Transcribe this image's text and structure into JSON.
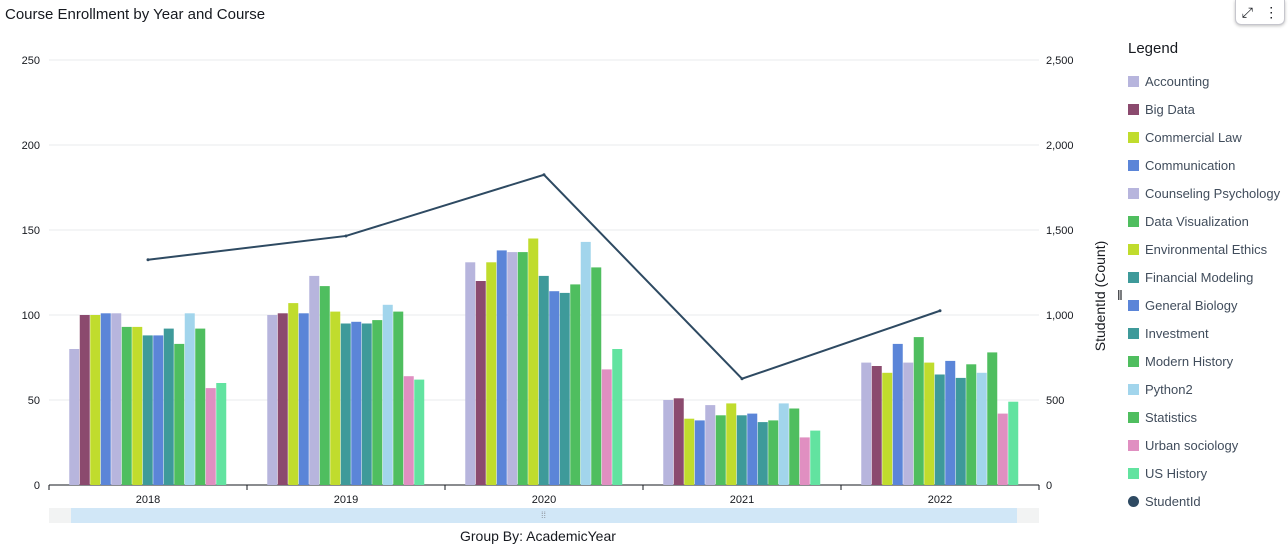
{
  "title": "Course Enrollment by Year and Course",
  "toolbar": {
    "expand_icon": "expand-icon",
    "menu_icon": "more-vertical-icon"
  },
  "group_by_label": "Group By: AcademicYear",
  "legend_title": "Legend",
  "chart_data": {
    "type": "bar",
    "title": "Course Enrollment by Year and Course",
    "xlabel": "",
    "ylabel": "",
    "y2label": "StudentId (Count)",
    "ylim": [
      0,
      250
    ],
    "y2lim": [
      0,
      2500
    ],
    "yticks": [
      "0",
      "50",
      "100",
      "150",
      "200",
      "250"
    ],
    "y2ticks": [
      "0",
      "500",
      "1,000",
      "1,500",
      "2,000",
      "2,500"
    ],
    "grid": true,
    "legend_position": "right",
    "categories": [
      "2018",
      "2019",
      "2020",
      "2021",
      "2022"
    ],
    "series": [
      {
        "name": "Accounting",
        "color": "#b7b5dd",
        "values": [
          80,
          100,
          131,
          50,
          72
        ]
      },
      {
        "name": "Big Data",
        "color": "#8b4a6e",
        "values": [
          100,
          101,
          120,
          51,
          70
        ]
      },
      {
        "name": "Commercial Law",
        "color": "#c0dc2d",
        "values": [
          100,
          107,
          131,
          39,
          66
        ]
      },
      {
        "name": "Communication",
        "color": "#5b85d8",
        "values": [
          101,
          101,
          138,
          38,
          83
        ]
      },
      {
        "name": "Counseling Psychology",
        "color": "#b7b5dd",
        "values": [
          101,
          123,
          137,
          47,
          72
        ]
      },
      {
        "name": "Data Visualization",
        "color": "#4fbe5f",
        "values": [
          93,
          117,
          137,
          41,
          87
        ]
      },
      {
        "name": "Environmental Ethics",
        "color": "#c0dc2d",
        "values": [
          93,
          102,
          145,
          48,
          72
        ]
      },
      {
        "name": "Financial Modeling",
        "color": "#3e9a9a",
        "values": [
          88,
          95,
          123,
          41,
          65
        ]
      },
      {
        "name": "General Biology",
        "color": "#5b85d8",
        "values": [
          88,
          96,
          114,
          42,
          73
        ]
      },
      {
        "name": "Investment",
        "color": "#3e9a9a",
        "values": [
          92,
          95,
          113,
          37,
          63
        ]
      },
      {
        "name": "Modern History",
        "color": "#4fbe5f",
        "values": [
          83,
          97,
          118,
          38,
          71
        ]
      },
      {
        "name": "Python2",
        "color": "#a2d5ec",
        "values": [
          101,
          106,
          143,
          48,
          66
        ]
      },
      {
        "name": "Statistics",
        "color": "#4fbe5f",
        "values": [
          92,
          102,
          128,
          45,
          78
        ]
      },
      {
        "name": "Urban sociology",
        "color": "#e08fc1",
        "values": [
          57,
          64,
          68,
          28,
          42
        ]
      },
      {
        "name": "US History",
        "color": "#62e3a0",
        "values": [
          60,
          62,
          80,
          32,
          49
        ]
      }
    ],
    "line_series": {
      "name": "StudentId",
      "color": "#2e4a62",
      "axis": "right",
      "values": [
        1325,
        1465,
        1825,
        625,
        1025
      ]
    }
  }
}
